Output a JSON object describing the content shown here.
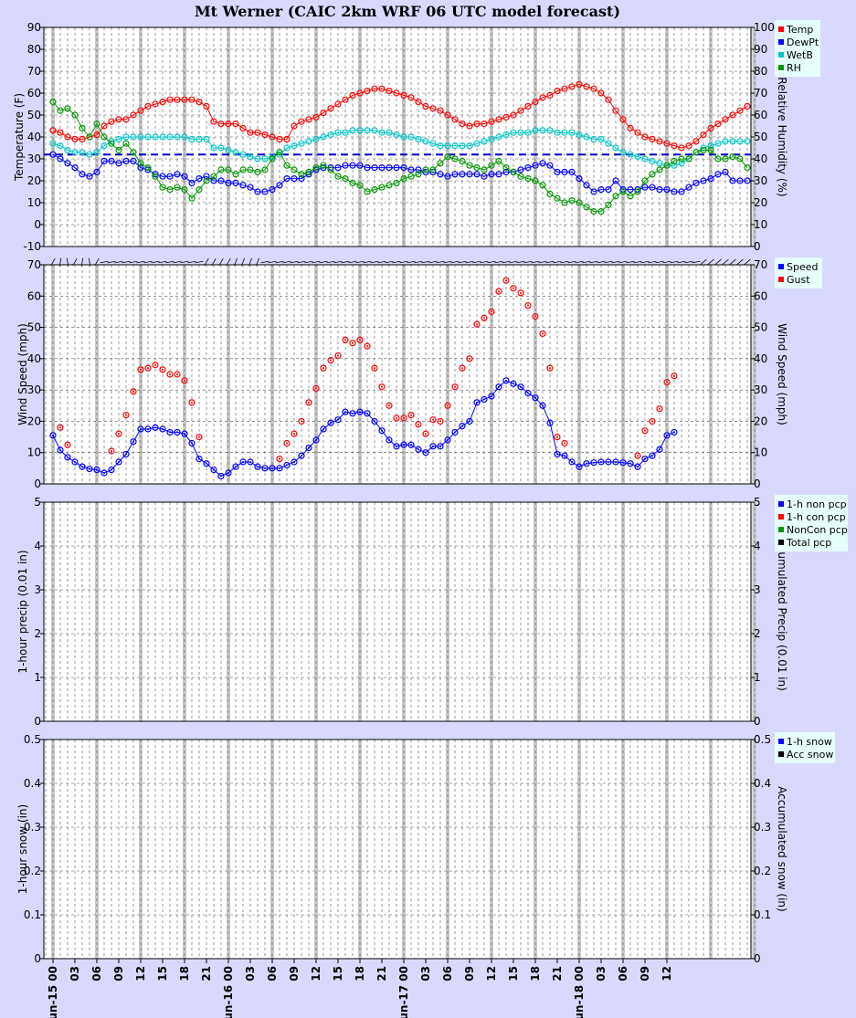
{
  "title": "Mt Werner (CAIC 2km WRF 06 UTC model forecast)",
  "colors": {
    "bg": "#d9d9ff",
    "temp": "#ff0000",
    "dewpt": "#0000ff",
    "wetb": "#00c8c8",
    "rh": "#009900",
    "legend_bg": "#e6fffa",
    "bar": "#c8c8c8"
  },
  "x_tick_labels": [
    "Jun-15 00",
    "03",
    "06",
    "09",
    "12",
    "15",
    "18",
    "21",
    "Jun-16 00",
    "03",
    "06",
    "09",
    "12",
    "15",
    "18",
    "21",
    "Jun-17 00",
    "03",
    "06",
    "09",
    "12",
    "15",
    "18",
    "21",
    "Jun-18 00",
    "03",
    "06",
    "09",
    "12"
  ],
  "chart_data": [
    {
      "type": "line",
      "name": "temperature",
      "ylabel": "Temperature (F)",
      "y2label": "Relative Humidity (%)",
      "ylim": [
        -10,
        90
      ],
      "yticks": [
        "-10",
        "0",
        "10",
        "20",
        "30",
        "40",
        "50",
        "60",
        "70",
        "80",
        "90"
      ],
      "y2lim": [
        0,
        100
      ],
      "y2ticks": [
        "0",
        "10",
        "20",
        "30",
        "40",
        "50",
        "60",
        "70",
        "80",
        "90",
        "100"
      ],
      "freezing_line": 32,
      "legend": [
        "Temp",
        "DewPt",
        "WetB",
        "RH"
      ],
      "series": [
        {
          "name": "Temp",
          "color": "#ff0000",
          "values": [
            43,
            42,
            40,
            39,
            39,
            40,
            41,
            45,
            47,
            48,
            48,
            50,
            52,
            54,
            55,
            56,
            57,
            57,
            57,
            57,
            56,
            54,
            47,
            46,
            46,
            46,
            44,
            42,
            42,
            41,
            40,
            39,
            39,
            45,
            47,
            48,
            49,
            51,
            53,
            55,
            57,
            59,
            60,
            61,
            62,
            62,
            61,
            60,
            59,
            58,
            56,
            54,
            53,
            52,
            50,
            48,
            46,
            45,
            46,
            46,
            47,
            48,
            49,
            50,
            52,
            54,
            56,
            58,
            59,
            61,
            62,
            63,
            64,
            63,
            62,
            60,
            57,
            52,
            48,
            44,
            42,
            40,
            39,
            38,
            37,
            36,
            35,
            36,
            38,
            41,
            44,
            46,
            48,
            50,
            52,
            54
          ]
        },
        {
          "name": "DewPt",
          "color": "#0000ff",
          "values": [
            32,
            30,
            28,
            26,
            23,
            22,
            24,
            29,
            29,
            28,
            29,
            29,
            26,
            25,
            23,
            22,
            22,
            23,
            22,
            19,
            21,
            22,
            20,
            20,
            19,
            19,
            18,
            17,
            15,
            15,
            16,
            18,
            21,
            21,
            21,
            23,
            25,
            26,
            26,
            26,
            27,
            27,
            27,
            26,
            26,
            26,
            26,
            26,
            26,
            25,
            25,
            24,
            24,
            23,
            22,
            23,
            23,
            23,
            23,
            22,
            23,
            23,
            24,
            24,
            25,
            26,
            27,
            28,
            27,
            24,
            24,
            24,
            21,
            18,
            15,
            16,
            16,
            20,
            16,
            16,
            16,
            17,
            17,
            16,
            16,
            15,
            15,
            17,
            19,
            20,
            21,
            23,
            24,
            20,
            20,
            20
          ]
        },
        {
          "name": "WetB",
          "color": "#00c8c8",
          "values": [
            37,
            36,
            34,
            33,
            33,
            32,
            33,
            36,
            38,
            39,
            40,
            40,
            40,
            40,
            40,
            40,
            40,
            40,
            40,
            39,
            39,
            39,
            35,
            35,
            34,
            33,
            32,
            31,
            30,
            30,
            31,
            32,
            35,
            36,
            37,
            38,
            39,
            40,
            41,
            42,
            42,
            43,
            43,
            43,
            43,
            42,
            42,
            41,
            40,
            40,
            39,
            38,
            37,
            36,
            36,
            36,
            36,
            36,
            37,
            38,
            39,
            40,
            41,
            42,
            42,
            42,
            43,
            43,
            43,
            42,
            42,
            42,
            41,
            40,
            39,
            39,
            37,
            35,
            33,
            32,
            31,
            30,
            29,
            28,
            27,
            27,
            28,
            30,
            33,
            35,
            36,
            37,
            38,
            38,
            38,
            38
          ]
        },
        {
          "name": "RH",
          "color": "#009900",
          "values": [
            66,
            62,
            63,
            60,
            54,
            50,
            56,
            50,
            47,
            44,
            47,
            43,
            38,
            36,
            32,
            27,
            26,
            27,
            26,
            22,
            26,
            30,
            32,
            35,
            35,
            33,
            35,
            35,
            34,
            35,
            40,
            43,
            37,
            35,
            33,
            34,
            36,
            37,
            35,
            32,
            31,
            29,
            28,
            25,
            26,
            27,
            28,
            29,
            31,
            32,
            33,
            35,
            35,
            38,
            41,
            40,
            39,
            37,
            36,
            35,
            37,
            39,
            36,
            34,
            32,
            31,
            30,
            28,
            24,
            22,
            20,
            21,
            20,
            18,
            16,
            16,
            19,
            23,
            25,
            23,
            25,
            30,
            33,
            35,
            37,
            39,
            40,
            40,
            43,
            44,
            44,
            40,
            40,
            41,
            40,
            36
          ]
        }
      ]
    },
    {
      "type": "scatter",
      "name": "wind",
      "ylabel": "Wind Speed (mph)",
      "y2label": "Wind Speed (mph)",
      "ylim": [
        0,
        70
      ],
      "yticks": [
        "0",
        "10",
        "20",
        "30",
        "40",
        "50",
        "60",
        "70"
      ],
      "y2ticks": [
        "0",
        "10",
        "20",
        "30",
        "40",
        "50",
        "60",
        "70"
      ],
      "legend": [
        "Speed",
        "Gust"
      ],
      "series": [
        {
          "name": "Speed",
          "color": "#0000ff",
          "values": [
            15.5,
            10.8,
            8.5,
            7,
            5.5,
            4.8,
            4.5,
            3.5,
            4.5,
            7,
            9.5,
            13.5,
            17.5,
            17.5,
            18,
            17.5,
            16.5,
            16.5,
            16,
            13,
            8,
            6.5,
            4.5,
            2.5,
            3.5,
            5.5,
            7,
            7,
            5.5,
            5,
            5,
            5,
            6,
            7,
            9,
            11.5,
            14,
            17.5,
            19.5,
            20.5,
            23,
            22.5,
            23,
            22.5,
            20,
            17,
            14,
            12,
            12.5,
            12.5,
            11,
            10,
            12,
            12,
            14,
            16.5,
            18.5,
            20,
            26,
            27,
            28,
            31,
            33,
            32,
            31,
            29,
            27.5,
            25,
            19.5,
            9.5,
            9,
            7,
            5.5,
            6.5,
            6.8,
            7,
            7,
            7,
            6.8,
            6.5,
            5.5,
            8,
            9,
            11,
            15.5,
            16.5
          ]
        },
        {
          "name": "Gust",
          "color": "#ff0000",
          "values": [
            null,
            18,
            12.5,
            null,
            null,
            null,
            null,
            null,
            10.5,
            16,
            22,
            29.5,
            36.5,
            37,
            38,
            36.5,
            35,
            35,
            33,
            26,
            15,
            null,
            null,
            null,
            null,
            null,
            null,
            null,
            null,
            null,
            null,
            8,
            13,
            16,
            20,
            26,
            30.5,
            37,
            39.5,
            41,
            46,
            45,
            46,
            44,
            37,
            31,
            25,
            21,
            21,
            22,
            19,
            16,
            20.5,
            20,
            25,
            31,
            37,
            40,
            51,
            53,
            55,
            61.5,
            65,
            62.5,
            61,
            57,
            53.5,
            48,
            37,
            15,
            13,
            null,
            null,
            null,
            null,
            null,
            null,
            null,
            null,
            null,
            9,
            17,
            20,
            24,
            32.5,
            34.5
          ]
        }
      ],
      "arrows_note": ""
    },
    {
      "type": "line",
      "name": "precip",
      "ylabel": "1-hour precip (0.01 in)",
      "y2label": "Accumulated Precip (0.01 in)",
      "ylim": [
        0,
        5
      ],
      "yticks": [
        "0",
        "1",
        "2",
        "3",
        "4",
        "5"
      ],
      "y2ticks": [
        "0",
        "1",
        "2",
        "3",
        "4",
        "5"
      ],
      "legend": [
        "1-h non pcp",
        "1-h con pcp",
        "NonCon pcp",
        "Total pcp"
      ],
      "legend_colors": [
        "#0000ff",
        "#ff0000",
        "#009900",
        "#000000"
      ],
      "series": []
    },
    {
      "type": "line",
      "name": "snow",
      "ylabel": "1-hour snow (in)",
      "y2label": "Accumulated snow (in)",
      "ylim": [
        0,
        0.5
      ],
      "yticks": [
        "0",
        "0.1",
        "0.2",
        "0.3",
        "0.4",
        "0.5"
      ],
      "y2ticks": [
        "0",
        "0.1",
        "0.2",
        "0.3",
        "0.4",
        "0.5"
      ],
      "legend": [
        "1-h snow",
        "Acc snow"
      ],
      "legend_colors": [
        "#0000ff",
        "#000000"
      ],
      "series": []
    }
  ]
}
